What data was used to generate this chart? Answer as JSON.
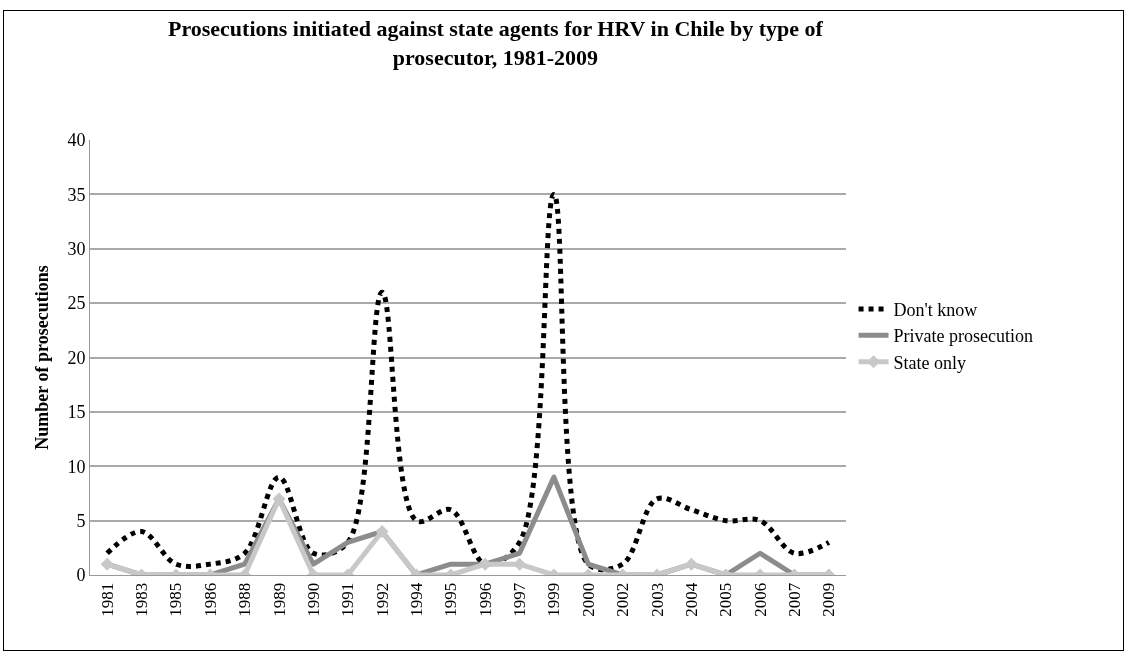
{
  "chart_data": {
    "type": "line",
    "title": "Prosecutions initiated against state agents for HRV in Chile by type of prosecutor, 1981-2009",
    "ylabel": "Number of prosecutions",
    "categories": [
      "1981",
      "1983",
      "1985",
      "1986",
      "1988",
      "1989",
      "1990",
      "1991",
      "1992",
      "1994",
      "1995",
      "1996",
      "1997",
      "1999",
      "2000",
      "2002",
      "2003",
      "2004",
      "2005",
      "2006",
      "2007",
      "2009"
    ],
    "series": [
      {
        "name": "Don't know",
        "color": "#000000",
        "line_style": "dotted",
        "marker": "none",
        "values": [
          2,
          4,
          1,
          1,
          2,
          9,
          2,
          3,
          26,
          5,
          6,
          1,
          3,
          35,
          1,
          1,
          7,
          6,
          5,
          5,
          2,
          3
        ]
      },
      {
        "name": "Private prosecution",
        "color": "#8c8c8c",
        "line_style": "solid",
        "marker": "none",
        "values": [
          1,
          0,
          0,
          0,
          1,
          7,
          1,
          3,
          4,
          0,
          1,
          1,
          2,
          9,
          1,
          0,
          0,
          1,
          0,
          2,
          0,
          0
        ]
      },
      {
        "name": "State only",
        "color": "#c8c8c8",
        "line_style": "solid",
        "marker": "diamond",
        "values": [
          1,
          0,
          0,
          0,
          0,
          7,
          0,
          0,
          4,
          0,
          0,
          1,
          1,
          0,
          0,
          0,
          0,
          1,
          0,
          0,
          0,
          0
        ]
      }
    ],
    "ylim": [
      0,
      40
    ],
    "yticks": [
      0,
      5,
      10,
      15,
      20,
      25,
      30,
      35,
      40
    ],
    "grid": "y",
    "legend": "right"
  }
}
